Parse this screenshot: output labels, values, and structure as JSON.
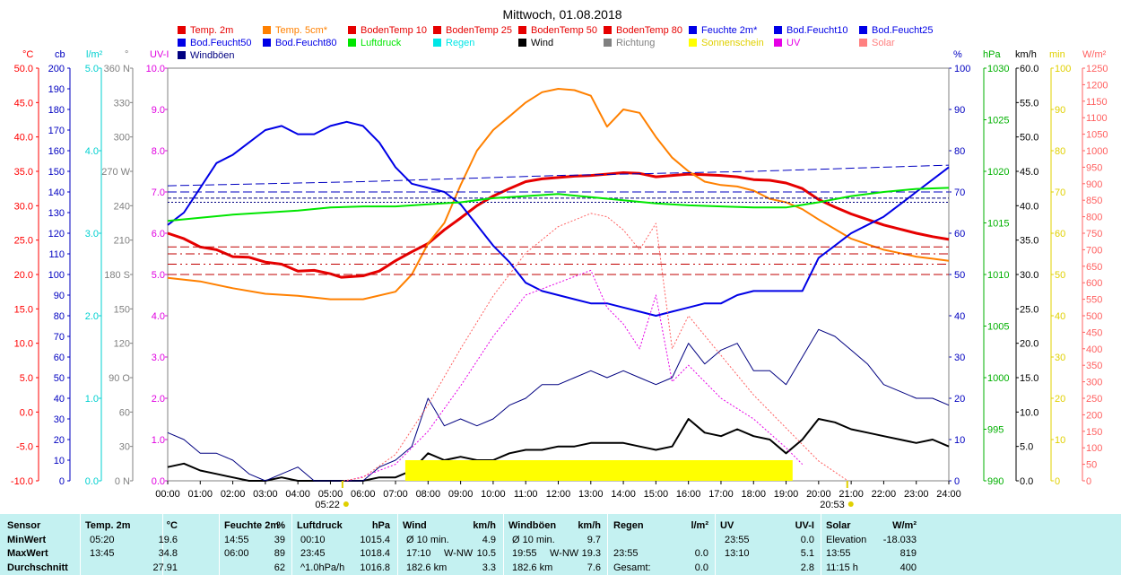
{
  "chart_data": {
    "type": "line",
    "title": "Mittwoch, 01.08.2018",
    "x_ticks": [
      "00:00",
      "01:00",
      "02:00",
      "03:00",
      "04:00",
      "05:00",
      "06:00",
      "07:00",
      "08:00",
      "09:00",
      "10:00",
      "11:00",
      "12:00",
      "13:00",
      "14:00",
      "15:00",
      "16:00",
      "17:00",
      "18:00",
      "19:00",
      "20:00",
      "21:00",
      "22:00",
      "23:00",
      "24:00"
    ],
    "sunrise_label": "05:22",
    "sunset_label": "20:53",
    "legend": [
      {
        "name": "Temp. 2m",
        "color": "#e60000"
      },
      {
        "name": "Temp. 5cm*",
        "color": "#ff8000"
      },
      {
        "name": "BodenTemp 10",
        "color": "#e60000"
      },
      {
        "name": "BodenTemp 25",
        "color": "#e60000"
      },
      {
        "name": "BodenTemp 50",
        "color": "#e60000"
      },
      {
        "name": "BodenTemp 80",
        "color": "#e60000"
      },
      {
        "name": "Feuchte 2m*",
        "color": "#0000e6"
      },
      {
        "name": "Bod.Feucht10",
        "color": "#0000e6"
      },
      {
        "name": "Bod.Feucht25",
        "color": "#0000e6"
      },
      {
        "name": "Bod.Feucht50",
        "color": "#0000e6"
      },
      {
        "name": "Bod.Feucht80",
        "color": "#0000e6"
      },
      {
        "name": "Luftdruck",
        "color": "#00e600"
      },
      {
        "name": "Regen",
        "color": "#00e6e6"
      },
      {
        "name": "Wind",
        "color": "#000000"
      },
      {
        "name": "Richtung",
        "color": "#808080"
      },
      {
        "name": "Sonnenschein",
        "color": "#ffff00"
      },
      {
        "name": "UV",
        "color": "#e600e6"
      },
      {
        "name": "Solar",
        "color": "#ff8080"
      },
      {
        "name": "Windböen",
        "color": "#000080"
      }
    ],
    "axes": [
      {
        "unit": "°C",
        "min": -10,
        "max": 50,
        "labels": [
          "-10.0",
          "-5.0",
          "0.0",
          "5.0",
          "10.0",
          "15.0",
          "20.0",
          "25.0",
          "30.0",
          "35.0",
          "40.0",
          "45.0",
          "50.0"
        ],
        "color": "#ff0000"
      },
      {
        "unit": "cb",
        "min": 0,
        "max": 200,
        "labels": [
          "0",
          "10",
          "20",
          "30",
          "40",
          "50",
          "60",
          "70",
          "80",
          "90",
          "100",
          "110",
          "120",
          "130",
          "140",
          "150",
          "160",
          "170",
          "180",
          "190",
          "200"
        ],
        "color": "#0000c0"
      },
      {
        "unit": "l/m²",
        "min": 0,
        "max": 5,
        "labels": [
          "0.0",
          "1.0",
          "2.0",
          "3.0",
          "4.0",
          "5.0"
        ],
        "color": "#00d0d0"
      },
      {
        "unit": "°",
        "min": 0,
        "max": 360,
        "labels": [
          "0 N",
          "30",
          "60",
          "90 O",
          "120",
          "150",
          "180 S",
          "210",
          "240",
          "270 W",
          "300",
          "330",
          "360 N"
        ],
        "color": "#808080"
      },
      {
        "unit": "UV-I",
        "min": 0,
        "max": 10,
        "labels": [
          "0.0",
          "1.0",
          "2.0",
          "3.0",
          "4.0",
          "5.0",
          "6.0",
          "7.0",
          "8.0",
          "9.0",
          "10.0"
        ],
        "color": "#e000e0"
      },
      {
        "unit": "%",
        "min": 0,
        "max": 100,
        "labels": [
          "0",
          "10",
          "20",
          "30",
          "40",
          "50",
          "60",
          "70",
          "80",
          "90",
          "100"
        ],
        "color": "#0000c0"
      },
      {
        "unit": "hPa",
        "min": 990,
        "max": 1030,
        "labels": [
          "990",
          "995",
          "1000",
          "1005",
          "1010",
          "1015",
          "1020",
          "1025",
          "1030"
        ],
        "color": "#00b000"
      },
      {
        "unit": "km/h",
        "min": 0,
        "max": 60,
        "labels": [
          "0.0",
          "5.0",
          "10.0",
          "15.0",
          "20.0",
          "25.0",
          "30.0",
          "35.0",
          "40.0",
          "45.0",
          "50.0",
          "55.0",
          "60.0"
        ],
        "color": "#000000"
      },
      {
        "unit": "min",
        "min": 0,
        "max": 100,
        "labels": [
          "0",
          "10",
          "20",
          "30",
          "40",
          "50",
          "60",
          "70",
          "80",
          "90",
          "100"
        ],
        "color": "#e0d000"
      },
      {
        "unit": "W/m²",
        "min": 0,
        "max": 1250,
        "labels": [
          "0",
          "50",
          "100",
          "150",
          "200",
          "250",
          "300",
          "350",
          "400",
          "450",
          "500",
          "550",
          "600",
          "650",
          "700",
          "750",
          "800",
          "850",
          "900",
          "950",
          "1000",
          "1050",
          "1100",
          "1150",
          "1200",
          "1250"
        ],
        "color": "#ff6060"
      }
    ],
    "series": [
      {
        "name": "Temp. 2m",
        "axis": "°C",
        "x": [
          0,
          0.5,
          1,
          1.5,
          2,
          2.5,
          3,
          3.5,
          4,
          4.5,
          5,
          5.33,
          6,
          6.5,
          7,
          7.5,
          8,
          8.5,
          9,
          9.5,
          10,
          10.5,
          11,
          11.5,
          12,
          12.5,
          13,
          13.5,
          14,
          14.5,
          15,
          15.5,
          16,
          16.5,
          17,
          17.5,
          18,
          18.5,
          19,
          19.5,
          20,
          20.5,
          21,
          21.5,
          22,
          22.5,
          23,
          23.5,
          24
        ],
        "y": [
          26,
          25.2,
          24,
          23.6,
          22.6,
          22.5,
          21.8,
          21.5,
          20.5,
          20.6,
          20.1,
          19.6,
          19.8,
          20.5,
          22,
          23.3,
          24.5,
          26.5,
          28.2,
          30,
          31.4,
          32.5,
          33.5,
          33.9,
          34.1,
          34.3,
          34.4,
          34.6,
          34.8,
          34.7,
          34.2,
          34.4,
          34.6,
          34.5,
          34.4,
          34.2,
          33.8,
          33.7,
          33.3,
          32.5,
          30.9,
          29.8,
          28.8,
          28,
          27.2,
          26.6,
          26,
          25.5,
          25.1
        ]
      },
      {
        "name": "Temp. 5cm*",
        "axis": "°C",
        "x": [
          0,
          1,
          2,
          3,
          4,
          5,
          6,
          7,
          7.5,
          8,
          8.5,
          9,
          9.5,
          10,
          10.5,
          11,
          11.5,
          12,
          12.5,
          13,
          13.5,
          14,
          14.5,
          15,
          15.5,
          16,
          16.5,
          17,
          17.5,
          18,
          18.5,
          19,
          19.5,
          20,
          20.5,
          21,
          21.5,
          22,
          22.5,
          23,
          23.5,
          24
        ],
        "y": [
          19.5,
          19,
          18,
          17.2,
          16.9,
          16.4,
          16.4,
          17.5,
          20,
          24.5,
          27.5,
          33,
          38,
          41,
          43,
          45,
          46.5,
          47,
          46.8,
          46,
          41.5,
          44,
          43.5,
          40,
          37,
          35,
          33.5,
          33,
          32.8,
          32.2,
          31,
          30.5,
          29.5,
          28,
          26.6,
          25.2,
          24.4,
          23.6,
          23.1,
          22.6,
          22.3,
          22
        ]
      },
      {
        "name": "BodenTemp 10",
        "axis": "°C",
        "x": [
          0,
          24
        ],
        "y": [
          24,
          24
        ]
      },
      {
        "name": "BodenTemp 25",
        "axis": "°C",
        "x": [
          0,
          24
        ],
        "y": [
          23,
          23
        ]
      },
      {
        "name": "BodenTemp 50",
        "axis": "°C",
        "x": [
          0,
          24
        ],
        "y": [
          21.5,
          21.5
        ]
      },
      {
        "name": "BodenTemp 80",
        "axis": "°C",
        "x": [
          0,
          24
        ],
        "y": [
          20,
          20
        ]
      },
      {
        "name": "Feuchte 2m*",
        "axis": "%",
        "x": [
          0,
          0.5,
          1,
          1.5,
          2,
          2.5,
          3,
          3.5,
          4,
          4.5,
          5,
          5.5,
          6,
          6.5,
          7,
          7.5,
          8,
          8.5,
          9,
          9.5,
          10,
          10.5,
          11,
          11.5,
          12,
          12.5,
          13,
          13.5,
          14,
          14.5,
          15,
          15.5,
          16,
          16.5,
          17,
          17.5,
          18,
          18.5,
          19,
          19.5,
          20,
          20.5,
          21,
          21.5,
          22,
          22.5,
          23,
          23.5,
          24
        ],
        "y": [
          62,
          65,
          71,
          77,
          79,
          82,
          85,
          86,
          84,
          84,
          86,
          87,
          86,
          82,
          76,
          72,
          71,
          70,
          67,
          62,
          57,
          53,
          48,
          46,
          45,
          44,
          43,
          43,
          42,
          41,
          40,
          41,
          42,
          43,
          43,
          45,
          46,
          46,
          46,
          46,
          54,
          57,
          60,
          62,
          64,
          67,
          70,
          73,
          76
        ]
      },
      {
        "name": "Bod.Feucht10",
        "axis": "cb",
        "x": [
          0,
          6,
          12,
          18,
          24
        ],
        "y": [
          143,
          145,
          148,
          150,
          153
        ]
      },
      {
        "name": "Bod.Feucht25",
        "axis": "cb",
        "x": [
          0,
          12,
          24
        ],
        "y": [
          137,
          137,
          137
        ]
      },
      {
        "name": "Bod.Feucht50",
        "axis": "cb",
        "x": [
          0,
          12,
          24
        ],
        "y": [
          140,
          140,
          140
        ]
      },
      {
        "name": "Bod.Feucht80",
        "axis": "cb",
        "x": [
          0,
          12,
          24
        ],
        "y": [
          135,
          135,
          135
        ]
      },
      {
        "name": "Luftdruck",
        "axis": "hPa",
        "x": [
          0,
          1,
          2,
          3,
          4,
          5,
          6,
          7,
          8,
          9,
          10,
          11,
          12,
          13,
          14,
          15,
          16,
          17,
          18,
          19,
          20,
          21,
          22,
          23,
          24
        ],
        "y": [
          1015.2,
          1015.5,
          1015.8,
          1016,
          1016.2,
          1016.5,
          1016.6,
          1016.6,
          1016.8,
          1017,
          1017.4,
          1017.6,
          1017.8,
          1017.5,
          1017.2,
          1016.9,
          1016.7,
          1016.6,
          1016.5,
          1016.5,
          1017,
          1017.6,
          1018,
          1018.3,
          1018.4
        ]
      },
      {
        "name": "Wind",
        "axis": "km/h",
        "x": [
          0,
          0.5,
          1,
          1.5,
          2,
          2.5,
          3,
          3.5,
          4,
          4.5,
          5,
          5.5,
          6,
          6.5,
          7,
          7.5,
          8,
          8.5,
          9,
          9.5,
          10,
          10.5,
          11,
          11.5,
          12,
          12.5,
          13,
          13.5,
          14,
          14.5,
          15,
          15.5,
          16,
          16.5,
          17,
          17.5,
          18,
          18.5,
          19,
          19.5,
          20,
          20.5,
          21,
          21.5,
          22,
          22.5,
          23,
          23.5,
          24
        ],
        "y": [
          2,
          2.5,
          1.5,
          1,
          0.5,
          0,
          0,
          0.5,
          0,
          0,
          0,
          0,
          0,
          0.5,
          0.5,
          1.5,
          4,
          3,
          3.5,
          3,
          3,
          4,
          4.5,
          4.5,
          5,
          5,
          5.5,
          5.5,
          5.5,
          5,
          4.5,
          5,
          9,
          7,
          6.5,
          7.5,
          6.5,
          6,
          4,
          6,
          9,
          8.5,
          7.5,
          7,
          6.5,
          6,
          5.5,
          6,
          5
        ]
      },
      {
        "name": "Windböen",
        "axis": "km/h",
        "x": [
          0,
          0.5,
          1,
          1.5,
          2,
          2.5,
          3,
          3.5,
          4,
          4.5,
          5,
          5.5,
          6,
          6.5,
          7,
          7.5,
          8,
          8.5,
          9,
          9.5,
          10,
          10.5,
          11,
          11.5,
          12,
          12.5,
          13,
          13.5,
          14,
          14.5,
          15,
          15.5,
          16,
          16.5,
          17,
          17.5,
          18,
          18.5,
          19,
          19.5,
          20,
          20.5,
          21,
          21.5,
          22,
          22.5,
          23,
          23.5,
          24
        ],
        "y": [
          7,
          6,
          4,
          4,
          3,
          1,
          0,
          1,
          2,
          0,
          0,
          0,
          0,
          2,
          3,
          5,
          12,
          8,
          9,
          8,
          9,
          11,
          12,
          14,
          14,
          15,
          16,
          15,
          16,
          15,
          14,
          15,
          20,
          17,
          19,
          20,
          16,
          16,
          14,
          18,
          22,
          21,
          19,
          17,
          14,
          13,
          12,
          12,
          11
        ]
      },
      {
        "name": "Sonnenschein",
        "axis": "min",
        "x": [
          7.3,
          19.2
        ],
        "y": [
          5,
          5
        ]
      },
      {
        "name": "UV",
        "axis": "UV-I",
        "x": [
          5.5,
          6,
          7,
          8,
          9,
          10,
          11,
          12,
          13,
          13.5,
          14,
          14.5,
          15,
          15.5,
          16,
          17,
          18,
          19,
          19.5
        ],
        "y": [
          0,
          0.1,
          0.4,
          1.2,
          2.3,
          3.5,
          4.5,
          4.8,
          5.1,
          4.2,
          3.8,
          3.2,
          4.5,
          2.4,
          2.8,
          2.0,
          1.5,
          0.8,
          0.4
        ]
      },
      {
        "name": "Solar",
        "axis": "W/m²",
        "x": [
          5.4,
          6,
          7,
          8,
          9,
          10,
          11,
          12,
          13,
          13.5,
          14,
          14.5,
          15,
          15.5,
          16,
          17,
          18,
          19,
          20,
          20.9
        ],
        "y": [
          0,
          10,
          80,
          230,
          400,
          560,
          690,
          770,
          810,
          800,
          760,
          700,
          780,
          400,
          500,
          380,
          260,
          160,
          60,
          0
        ]
      }
    ]
  },
  "stats": {
    "headers": {
      "sensor": "Sensor",
      "temp": "Temp. 2m",
      "temp_unit": "°C",
      "hum": "Feuchte 2m",
      "hum_unit": "%",
      "press": "Luftdruck",
      "press_unit": "hPa",
      "wind": "Wind",
      "wind_unit": "km/h",
      "gust": "Windböen",
      "gust_unit": "km/h",
      "rain": "Regen",
      "rain_unit": "l/m²",
      "uv": "UV",
      "uv_unit": "UV-I",
      "solar": "Solar",
      "solar_unit": "W/m²"
    },
    "rows": [
      {
        "label": "MinWert",
        "temp_t": "05:20",
        "temp_v": "19.6",
        "hum_t": "14:55",
        "hum_v": "39",
        "press_t": "00:10",
        "press_v": "1015.4",
        "wind_t": "Ø 10 min.",
        "wind_d": "",
        "wind_v": "4.9",
        "gust_t": "Ø 10 min.",
        "gust_d": "",
        "gust_v": "9.7",
        "rain_t": "",
        "rain_v": "",
        "uv_t": "23:55",
        "uv_v": "0.0",
        "solar_t": "Elevation",
        "solar_v": "-18.033"
      },
      {
        "label": "MaxWert",
        "temp_t": "13:45",
        "temp_v": "34.8",
        "hum_t": "06:00",
        "hum_v": "89",
        "press_t": "23:45",
        "press_v": "1018.4",
        "wind_t": "17:10",
        "wind_d": "W-NW",
        "wind_v": "10.5",
        "gust_t": "19:55",
        "gust_d": "W-NW",
        "gust_v": "19.3",
        "rain_t": "23:55",
        "rain_v": "0.0",
        "uv_t": "13:10",
        "uv_v": "5.1",
        "solar_t": "13:55",
        "solar_v": "819"
      },
      {
        "label": "Durchschnitt",
        "temp_t": "",
        "temp_v": "27.91",
        "hum_t": "",
        "hum_v": "62",
        "press_t": "^1.0hPa/h",
        "press_v": "1016.8",
        "wind_t": "182.6 km",
        "wind_d": "",
        "wind_v": "3.3",
        "gust_t": "182.6 km",
        "gust_d": "",
        "gust_v": "7.6",
        "rain_t": "Gesamt:",
        "rain_v": "0.0",
        "uv_t": "",
        "uv_v": "2.8",
        "solar_t": "11:15 h",
        "solar_v": "400"
      }
    ]
  }
}
